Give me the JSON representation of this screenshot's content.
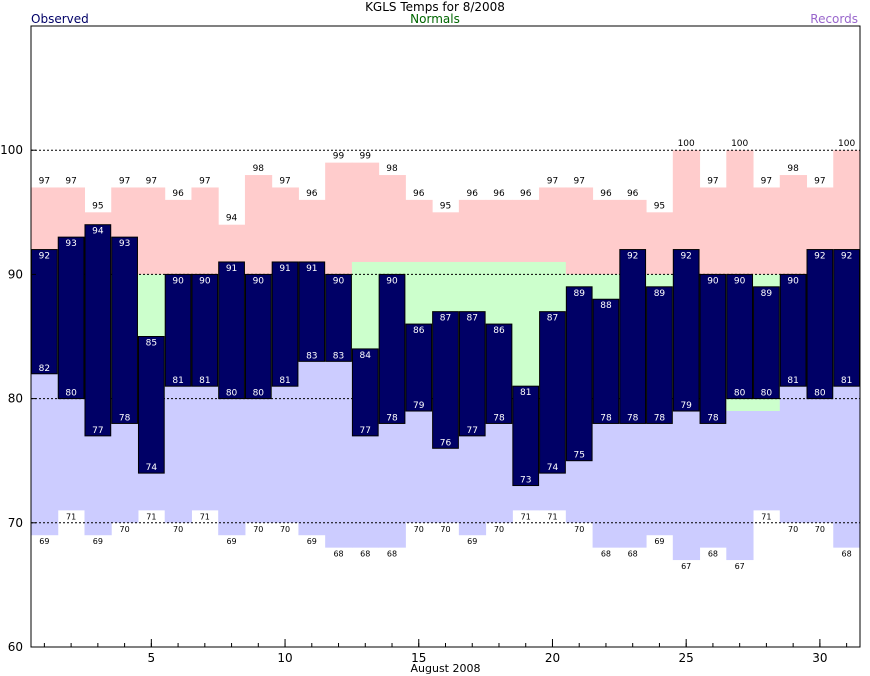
{
  "header": {
    "title": "KGLS Temps for 8/2008",
    "observed_label": "Observed",
    "normals_label": "Normals",
    "records_label": "Records"
  },
  "colors": {
    "observed": "#000066",
    "normal_band": "#ccffcc",
    "record_high": "#ffcccc",
    "record_low": "#ccccff",
    "normals_text": "#006600",
    "records_text": "#9966cc"
  },
  "chart_data": {
    "type": "bar",
    "title": "KGLS Temps for 8/2008",
    "xlabel": "August 2008",
    "ylabel": "",
    "ylim": [
      60,
      110
    ],
    "yticks": [
      60,
      70,
      80,
      90,
      100
    ],
    "xticks": [
      5,
      10,
      15,
      20,
      25,
      30
    ],
    "grid_lines": [
      70,
      80,
      90,
      100
    ],
    "days": [
      1,
      2,
      3,
      4,
      5,
      6,
      7,
      8,
      9,
      10,
      11,
      12,
      13,
      14,
      15,
      16,
      17,
      18,
      19,
      20,
      21,
      22,
      23,
      24,
      25,
      26,
      27,
      28,
      29,
      30,
      31
    ],
    "series": [
      {
        "name": "Observed",
        "high": [
          92,
          93,
          94,
          93,
          85,
          90,
          90,
          91,
          90,
          91,
          91,
          90,
          84,
          90,
          86,
          87,
          87,
          86,
          81,
          87,
          89,
          88,
          92,
          89,
          92,
          90,
          90,
          89,
          90,
          92,
          92
        ],
        "low": [
          82,
          80,
          77,
          78,
          74,
          81,
          81,
          80,
          80,
          81,
          83,
          83,
          77,
          78,
          79,
          76,
          77,
          78,
          73,
          74,
          75,
          78,
          78,
          78,
          79,
          78,
          80,
          80,
          81,
          80,
          81
        ]
      },
      {
        "name": "Normals",
        "high": [
          90,
          90,
          90,
          90,
          90,
          90,
          90,
          90,
          90,
          90,
          90,
          90,
          91,
          91,
          91,
          91,
          91,
          91,
          91,
          91,
          90,
          90,
          90,
          90,
          90,
          90,
          90,
          90,
          90,
          90,
          90
        ],
        "low": [
          82,
          80,
          80,
          80,
          80,
          81,
          81,
          80,
          80,
          81,
          83,
          83,
          80,
          80,
          80,
          80,
          80,
          80,
          80,
          80,
          80,
          80,
          80,
          80,
          80,
          80,
          79,
          79,
          81,
          80,
          81
        ]
      },
      {
        "name": "Records",
        "high": [
          97,
          97,
          95,
          97,
          97,
          96,
          97,
          94,
          98,
          97,
          96,
          99,
          99,
          98,
          96,
          95,
          96,
          96,
          96,
          97,
          97,
          96,
          96,
          95,
          100,
          97,
          100,
          97,
          98,
          97,
          100
        ],
        "low": [
          69,
          71,
          69,
          70,
          71,
          70,
          71,
          69,
          70,
          70,
          69,
          68,
          68,
          68,
          70,
          70,
          69,
          70,
          71,
          71,
          70,
          68,
          68,
          69,
          67,
          68,
          67,
          71,
          70,
          70,
          68
        ]
      }
    ]
  }
}
